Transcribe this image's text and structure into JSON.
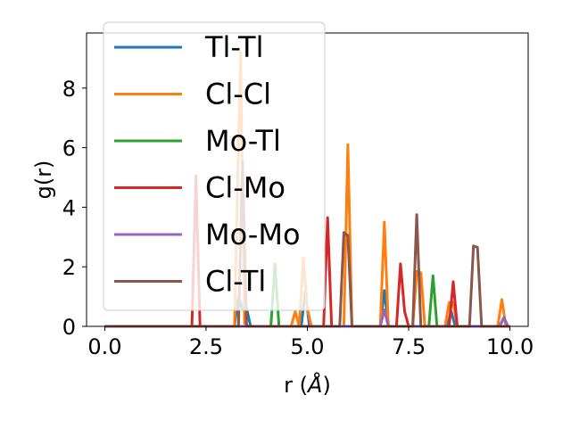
{
  "chart_data": {
    "type": "line",
    "xlabel": "r (",
    "xlabel_unit": "Å",
    "xlabel_close": ")",
    "ylabel": "g(r)",
    "xlim": [
      -0.45,
      10.45
    ],
    "ylim": [
      0,
      9.85
    ],
    "xticks": [
      0.0,
      2.5,
      5.0,
      7.5,
      10.0
    ],
    "xtick_labels": [
      "0.0",
      "2.5",
      "5.0",
      "7.5",
      "10.0"
    ],
    "yticks": [
      0,
      2,
      4,
      6,
      8
    ],
    "ytick_labels": [
      "0",
      "2",
      "4",
      "6",
      "8"
    ],
    "grid": false,
    "legend_position": "upper-left",
    "series": [
      {
        "name": "Tl-Tl",
        "color": "#1f77b4",
        "x": [
          0,
          3.2,
          3.3,
          3.4,
          3.5,
          3.6,
          4.85,
          4.95,
          5.05,
          6.8,
          6.9,
          7.0,
          8.45,
          8.55,
          8.65,
          9.75,
          9.85,
          9.95,
          10.0
        ],
        "y": [
          0,
          0,
          1.0,
          0.6,
          0.6,
          0,
          0,
          1.2,
          0,
          0,
          1.2,
          0,
          0,
          0.5,
          0,
          0,
          0.3,
          0,
          0
        ]
      },
      {
        "name": "Cl-Cl",
        "color": "#ff7f0e",
        "x": [
          0,
          3.2,
          3.35,
          3.45,
          3.55,
          4.6,
          4.7,
          4.8,
          4.9,
          5.0,
          5.1,
          5.9,
          6.0,
          6.1,
          6.8,
          6.9,
          7.0,
          7.6,
          7.7,
          7.8,
          7.9,
          8.4,
          8.5,
          8.6,
          8.7,
          9.7,
          9.8,
          9.9,
          10.0
        ],
        "y": [
          0,
          0,
          9.2,
          0.1,
          0,
          0,
          0.5,
          0,
          2.3,
          0.6,
          0,
          0,
          6.1,
          0,
          0,
          3.5,
          0,
          0,
          1.85,
          1.8,
          0,
          0,
          0.8,
          0.8,
          0,
          0,
          0.9,
          0,
          0
        ]
      },
      {
        "name": "Mo-Tl",
        "color": "#2ca02c",
        "x": [
          0,
          4.1,
          4.2,
          4.3,
          8.0,
          8.1,
          8.2,
          10.0
        ],
        "y": [
          0,
          0,
          2.1,
          0,
          0,
          1.7,
          0,
          0
        ]
      },
      {
        "name": "Cl-Mo",
        "color": "#d62728",
        "x": [
          0,
          2.15,
          2.25,
          2.35,
          5.4,
          5.5,
          5.6,
          7.2,
          7.3,
          7.4,
          7.5,
          8.5,
          8.6,
          8.7,
          10.0
        ],
        "y": [
          0,
          0,
          5.05,
          0,
          0,
          3.65,
          0,
          0,
          2.1,
          0.5,
          0,
          0,
          1.5,
          0,
          0
        ]
      },
      {
        "name": "Mo-Mo",
        "color": "#9467bd",
        "x": [
          0,
          6.8,
          6.9,
          7.0,
          9.75,
          9.85,
          9.95,
          10.0
        ],
        "y": [
          0,
          0,
          0.55,
          0,
          0,
          0.3,
          0,
          0
        ]
      },
      {
        "name": "Cl-Tl",
        "color": "#8c564b",
        "x": [
          0,
          3.3,
          3.4,
          3.5,
          5.8,
          5.9,
          6.0,
          6.1,
          7.6,
          7.7,
          7.8,
          9.0,
          9.1,
          9.2,
          9.3,
          10.0
        ],
        "y": [
          0,
          0,
          5.5,
          0,
          0,
          3.15,
          3.05,
          0,
          0,
          3.75,
          0,
          0,
          2.7,
          2.65,
          0,
          0
        ]
      }
    ]
  }
}
